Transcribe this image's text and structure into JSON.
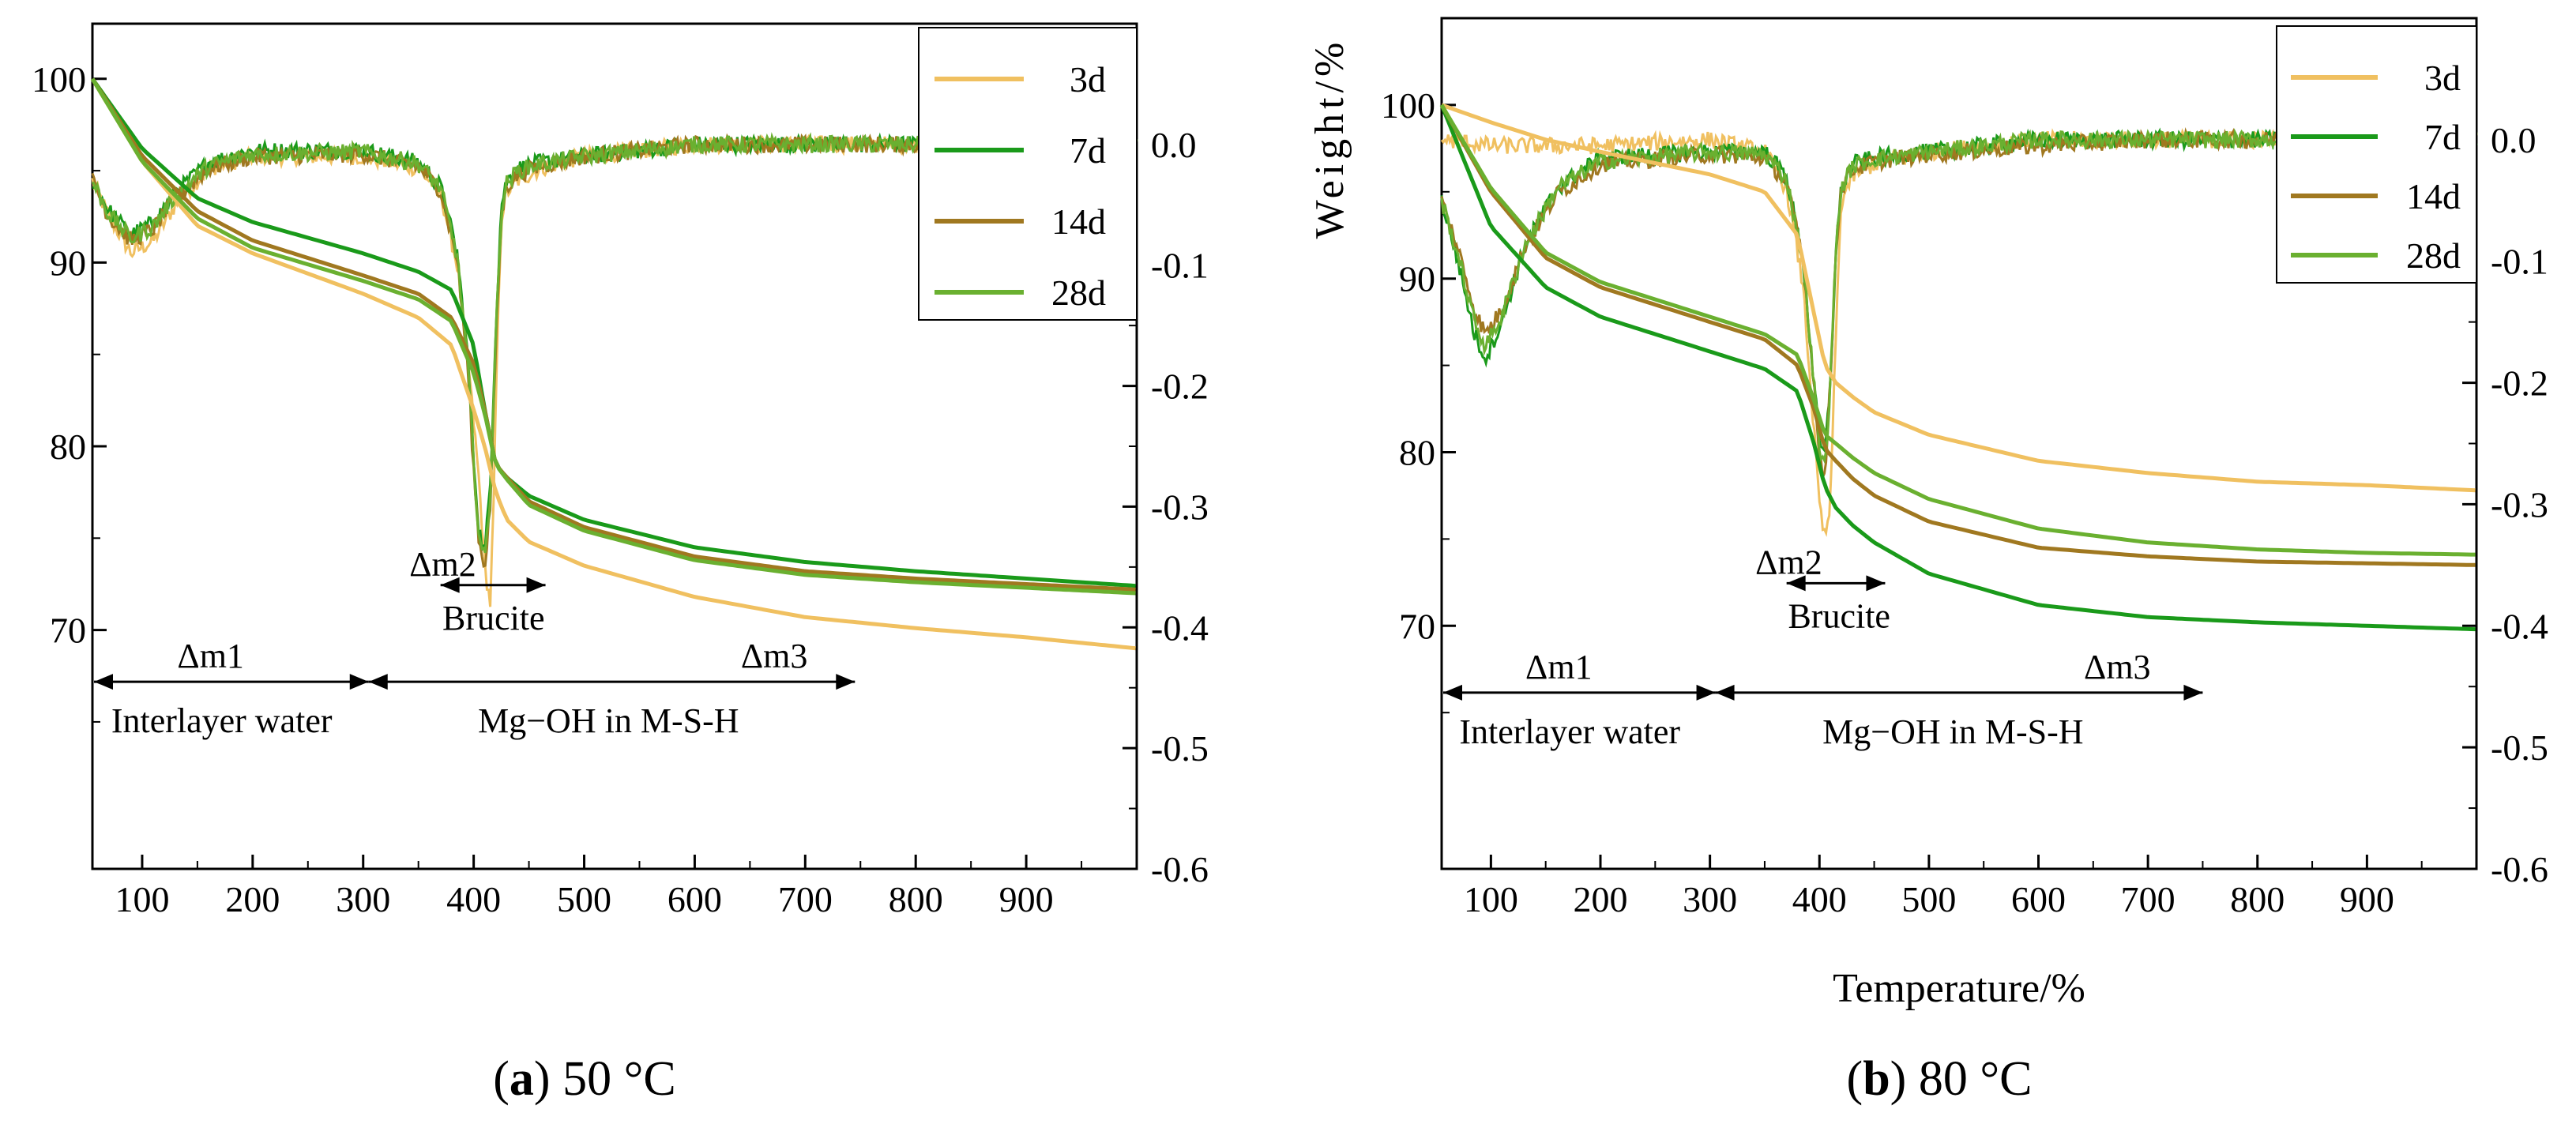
{
  "chart_data": [
    {
      "type": "line",
      "panel_letter": "a",
      "caption_rest": ") 50 °C",
      "caption_open": "(",
      "xlabel": "",
      "ylabel": "",
      "xlim": [
        55,
        1000
      ],
      "ylim_weight": [
        57,
        103
      ],
      "ylim_dtg": [
        -0.6,
        0.1
      ],
      "x_ticks": [
        100,
        200,
        300,
        400,
        500,
        600,
        700,
        800,
        900
      ],
      "y_ticks_left": [
        100,
        90,
        80,
        70
      ],
      "y_ticks_right": [
        0.0,
        -0.1,
        -0.2,
        -0.3,
        -0.4,
        -0.5,
        -0.6
      ],
      "y_tick_labels_right": [
        "0.0",
        "-0.1",
        "-0.2",
        "-0.3",
        "-0.4",
        "-0.5",
        "-0.6"
      ],
      "legend": [
        "3d",
        "7d",
        "14d",
        "28d"
      ],
      "legend_placement": "top-right",
      "tg_series": [
        {
          "name": "3d",
          "color": "#f0c060",
          "x": [
            55,
            100,
            150,
            200,
            300,
            350,
            380,
            400,
            410,
            420,
            430,
            450,
            500,
            600,
            700,
            800,
            900,
            1000
          ],
          "values": [
            100,
            95.5,
            92.0,
            90.5,
            88.3,
            87.0,
            85.5,
            82.0,
            80.0,
            77.5,
            76.0,
            74.8,
            73.5,
            71.8,
            70.7,
            70.1,
            69.6,
            69.0
          ]
        },
        {
          "name": "7d",
          "color": "#1a9a1a",
          "x": [
            55,
            100,
            150,
            200,
            300,
            350,
            380,
            400,
            410,
            420,
            430,
            450,
            500,
            600,
            700,
            800,
            900,
            1000
          ],
          "values": [
            100,
            96.2,
            93.5,
            92.2,
            90.5,
            89.5,
            88.5,
            85.5,
            82.0,
            79.0,
            78.3,
            77.3,
            76.0,
            74.5,
            73.7,
            73.2,
            72.8,
            72.4
          ]
        },
        {
          "name": "14d",
          "color": "#a07820",
          "x": [
            55,
            100,
            150,
            200,
            300,
            350,
            380,
            400,
            410,
            420,
            430,
            450,
            500,
            600,
            700,
            800,
            900,
            1000
          ],
          "values": [
            100,
            95.8,
            92.8,
            91.2,
            89.3,
            88.3,
            87.0,
            84.5,
            82.0,
            79.0,
            78.3,
            77.0,
            75.6,
            74.0,
            73.2,
            72.8,
            72.5,
            72.2
          ]
        },
        {
          "name": "28d",
          "color": "#6ab030",
          "x": [
            55,
            100,
            150,
            200,
            300,
            350,
            380,
            400,
            410,
            420,
            430,
            450,
            500,
            600,
            700,
            800,
            900,
            1000
          ],
          "values": [
            100,
            95.5,
            92.4,
            90.8,
            89.0,
            88.0,
            86.8,
            84.0,
            81.8,
            79.0,
            78.2,
            76.8,
            75.4,
            73.8,
            73.0,
            72.6,
            72.3,
            72.0
          ]
        }
      ],
      "dtg_series": [
        {
          "name": "3d",
          "color": "#f0c060",
          "x": [
            55,
            70,
            90,
            110,
            130,
            160,
            200,
            300,
            350,
            370,
            385,
            395,
            405,
            410,
            415,
            418,
            421,
            425,
            430,
            440,
            460,
            500,
            600,
            700,
            800,
            900,
            1000
          ],
          "values": [
            -0.03,
            -0.06,
            -0.09,
            -0.08,
            -0.05,
            -0.02,
            -0.01,
            -0.01,
            -0.02,
            -0.04,
            -0.1,
            -0.18,
            -0.28,
            -0.35,
            -0.38,
            -0.3,
            -0.18,
            -0.06,
            -0.04,
            -0.03,
            -0.02,
            -0.01,
            0.0,
            0.0,
            0.0,
            0.0,
            0.0
          ]
        },
        {
          "name": "7d",
          "color": "#1a9a1a",
          "x": [
            55,
            70,
            90,
            110,
            130,
            160,
            200,
            300,
            350,
            370,
            385,
            395,
            400,
            405,
            410,
            415,
            420,
            425,
            430,
            440,
            460,
            500,
            600,
            700,
            800,
            900,
            1000
          ],
          "values": [
            -0.03,
            -0.055,
            -0.075,
            -0.065,
            -0.04,
            -0.015,
            -0.005,
            -0.005,
            -0.015,
            -0.035,
            -0.09,
            -0.18,
            -0.26,
            -0.32,
            -0.34,
            -0.28,
            -0.15,
            -0.05,
            -0.03,
            -0.02,
            -0.015,
            -0.01,
            0.0,
            0.0,
            0.0,
            0.0,
            0.0
          ]
        },
        {
          "name": "14d",
          "color": "#a07820",
          "x": [
            55,
            70,
            90,
            110,
            130,
            160,
            200,
            300,
            350,
            370,
            385,
            395,
            400,
            405,
            410,
            415,
            420,
            425,
            430,
            440,
            460,
            500,
            600,
            700,
            800,
            900,
            1000
          ],
          "values": [
            -0.03,
            -0.06,
            -0.08,
            -0.07,
            -0.045,
            -0.02,
            -0.01,
            -0.008,
            -0.018,
            -0.038,
            -0.095,
            -0.19,
            -0.27,
            -0.33,
            -0.35,
            -0.3,
            -0.17,
            -0.06,
            -0.035,
            -0.025,
            -0.018,
            -0.01,
            0.0,
            0.0,
            0.0,
            0.0,
            0.0
          ]
        },
        {
          "name": "28d",
          "color": "#6ab030",
          "x": [
            55,
            70,
            90,
            110,
            130,
            160,
            200,
            300,
            350,
            370,
            385,
            395,
            400,
            405,
            410,
            415,
            420,
            425,
            430,
            440,
            460,
            500,
            600,
            700,
            800,
            900,
            1000
          ],
          "values": [
            -0.03,
            -0.058,
            -0.078,
            -0.068,
            -0.042,
            -0.018,
            -0.008,
            -0.006,
            -0.016,
            -0.036,
            -0.092,
            -0.185,
            -0.265,
            -0.325,
            -0.345,
            -0.29,
            -0.16,
            -0.055,
            -0.032,
            -0.022,
            -0.016,
            -0.01,
            0.0,
            0.0,
            0.0,
            0.0,
            0.0
          ]
        }
      ],
      "annotations": {
        "dm1": "Δm1",
        "dm2": "Δm2",
        "dm3": "Δm3",
        "interlayer": "Interlayer water",
        "brucite": "Brucite",
        "mgoh": "Mg−OH in M-S-H",
        "dm1_range": [
          55,
          305
        ],
        "dm2_range": [
          370,
          465
        ],
        "dm3_range": [
          305,
          745
        ],
        "dm12_arrow_y": -0.445,
        "dm2_arrow_y": -0.365
      }
    },
    {
      "type": "line",
      "panel_letter": "b",
      "caption_rest": ") 80 °C",
      "caption_open": "(",
      "xlabel": "Temperature/%",
      "ylabel": "Weight/%",
      "xlim": [
        55,
        1000
      ],
      "ylim_weight": [
        56,
        105
      ],
      "ylim_dtg": [
        -0.6,
        0.1
      ],
      "x_ticks": [
        100,
        200,
        300,
        400,
        500,
        600,
        700,
        800,
        900
      ],
      "y_ticks_left": [
        100,
        90,
        80,
        70
      ],
      "y_ticks_right": [
        0.0,
        -0.1,
        -0.2,
        -0.3,
        -0.4,
        -0.5,
        -0.6
      ],
      "y_tick_labels_right": [
        "0.0",
        "-0.1",
        "-0.2",
        "-0.3",
        "-0.4",
        "-0.5",
        "-0.6"
      ],
      "legend": [
        "3d",
        "7d",
        "14d",
        "28d"
      ],
      "legend_placement": "top-right",
      "tg_series": [
        {
          "name": "3d",
          "color": "#f0c060",
          "x": [
            55,
            100,
            150,
            200,
            300,
            350,
            380,
            395,
            405,
            415,
            430,
            450,
            500,
            600,
            700,
            800,
            900,
            1000
          ],
          "values": [
            100,
            99.0,
            98.0,
            97.3,
            96.0,
            95.0,
            92.5,
            88.0,
            85.0,
            84.0,
            83.2,
            82.3,
            81.0,
            79.5,
            78.8,
            78.3,
            78.1,
            77.8
          ]
        },
        {
          "name": "7d",
          "color": "#1a9a1a",
          "x": [
            55,
            100,
            150,
            200,
            300,
            350,
            380,
            395,
            405,
            415,
            430,
            450,
            500,
            600,
            700,
            800,
            900,
            1000
          ],
          "values": [
            100,
            93.0,
            89.5,
            87.8,
            85.8,
            84.8,
            83.5,
            80.5,
            78.0,
            76.8,
            75.8,
            74.8,
            73.0,
            71.2,
            70.5,
            70.2,
            70.0,
            69.8
          ]
        },
        {
          "name": "14d",
          "color": "#a07820",
          "x": [
            55,
            100,
            150,
            200,
            300,
            350,
            380,
            395,
            405,
            415,
            430,
            450,
            500,
            600,
            700,
            800,
            900,
            1000
          ],
          "values": [
            100,
            95.0,
            91.2,
            89.5,
            87.5,
            86.5,
            85.0,
            82.5,
            80.2,
            79.5,
            78.5,
            77.5,
            76.0,
            74.5,
            74.0,
            73.7,
            73.6,
            73.5
          ]
        },
        {
          "name": "28d",
          "color": "#6ab030",
          "x": [
            55,
            100,
            150,
            200,
            300,
            350,
            380,
            395,
            405,
            415,
            430,
            450,
            500,
            600,
            700,
            800,
            900,
            1000
          ],
          "values": [
            100,
            95.2,
            91.5,
            89.8,
            87.8,
            86.8,
            85.6,
            83.0,
            81.0,
            80.5,
            79.7,
            78.8,
            77.3,
            75.6,
            74.8,
            74.4,
            74.2,
            74.1
          ]
        }
      ],
      "dtg_series": [
        {
          "name": "3d",
          "color": "#f0c060",
          "x": [
            55,
            100,
            150,
            200,
            300,
            350,
            370,
            385,
            395,
            400,
            405,
            410,
            415,
            420,
            430,
            450,
            500,
            600,
            700,
            800,
            900,
            1000
          ],
          "values": [
            0.0,
            -0.005,
            -0.005,
            -0.005,
            0.0,
            -0.01,
            -0.04,
            -0.12,
            -0.24,
            -0.3,
            -0.33,
            -0.3,
            -0.16,
            -0.05,
            -0.03,
            -0.02,
            -0.01,
            0.0,
            0.0,
            0.0,
            0.0,
            0.0
          ]
        },
        {
          "name": "7d",
          "color": "#1a9a1a",
          "x": [
            55,
            70,
            85,
            95,
            110,
            130,
            160,
            200,
            300,
            350,
            370,
            385,
            395,
            400,
            405,
            410,
            415,
            420,
            430,
            450,
            500,
            600,
            700,
            800,
            900,
            1000
          ],
          "values": [
            -0.05,
            -0.1,
            -0.16,
            -0.18,
            -0.15,
            -0.09,
            -0.04,
            -0.015,
            -0.01,
            -0.01,
            -0.03,
            -0.1,
            -0.2,
            -0.25,
            -0.26,
            -0.2,
            -0.09,
            -0.04,
            -0.02,
            -0.015,
            -0.01,
            0.0,
            0.0,
            0.0,
            0.0,
            0.0
          ]
        },
        {
          "name": "14d",
          "color": "#a07820",
          "x": [
            55,
            70,
            85,
            95,
            110,
            130,
            160,
            200,
            300,
            350,
            370,
            385,
            395,
            400,
            405,
            410,
            415,
            420,
            430,
            450,
            500,
            600,
            700,
            800,
            900,
            1000
          ],
          "values": [
            -0.05,
            -0.09,
            -0.14,
            -0.16,
            -0.14,
            -0.09,
            -0.045,
            -0.02,
            -0.012,
            -0.015,
            -0.035,
            -0.1,
            -0.2,
            -0.26,
            -0.28,
            -0.2,
            -0.09,
            -0.04,
            -0.025,
            -0.018,
            -0.012,
            -0.005,
            0.0,
            0.0,
            0.0,
            0.0
          ]
        },
        {
          "name": "28d",
          "color": "#6ab030",
          "x": [
            55,
            70,
            85,
            95,
            110,
            130,
            160,
            200,
            300,
            350,
            370,
            385,
            395,
            400,
            405,
            410,
            415,
            420,
            430,
            450,
            500,
            600,
            700,
            800,
            900,
            1000
          ],
          "values": [
            -0.05,
            -0.095,
            -0.15,
            -0.17,
            -0.145,
            -0.09,
            -0.04,
            -0.018,
            -0.01,
            -0.012,
            -0.032,
            -0.1,
            -0.2,
            -0.255,
            -0.27,
            -0.2,
            -0.09,
            -0.04,
            -0.022,
            -0.016,
            -0.01,
            0.0,
            0.0,
            0.0,
            0.0,
            0.0
          ]
        }
      ],
      "annotations": {
        "dm1": "Δm1",
        "dm2": "Δm2",
        "dm3": "Δm3",
        "interlayer": "Interlayer water",
        "brucite": "Brucite",
        "mgoh": "Mg−OH in M-S-H",
        "dm1_range": [
          55,
          305
        ],
        "dm2_range": [
          370,
          460
        ],
        "dm3_range": [
          305,
          750
        ],
        "dm12_arrow_y": -0.455,
        "dm2_arrow_y": -0.365
      }
    }
  ]
}
